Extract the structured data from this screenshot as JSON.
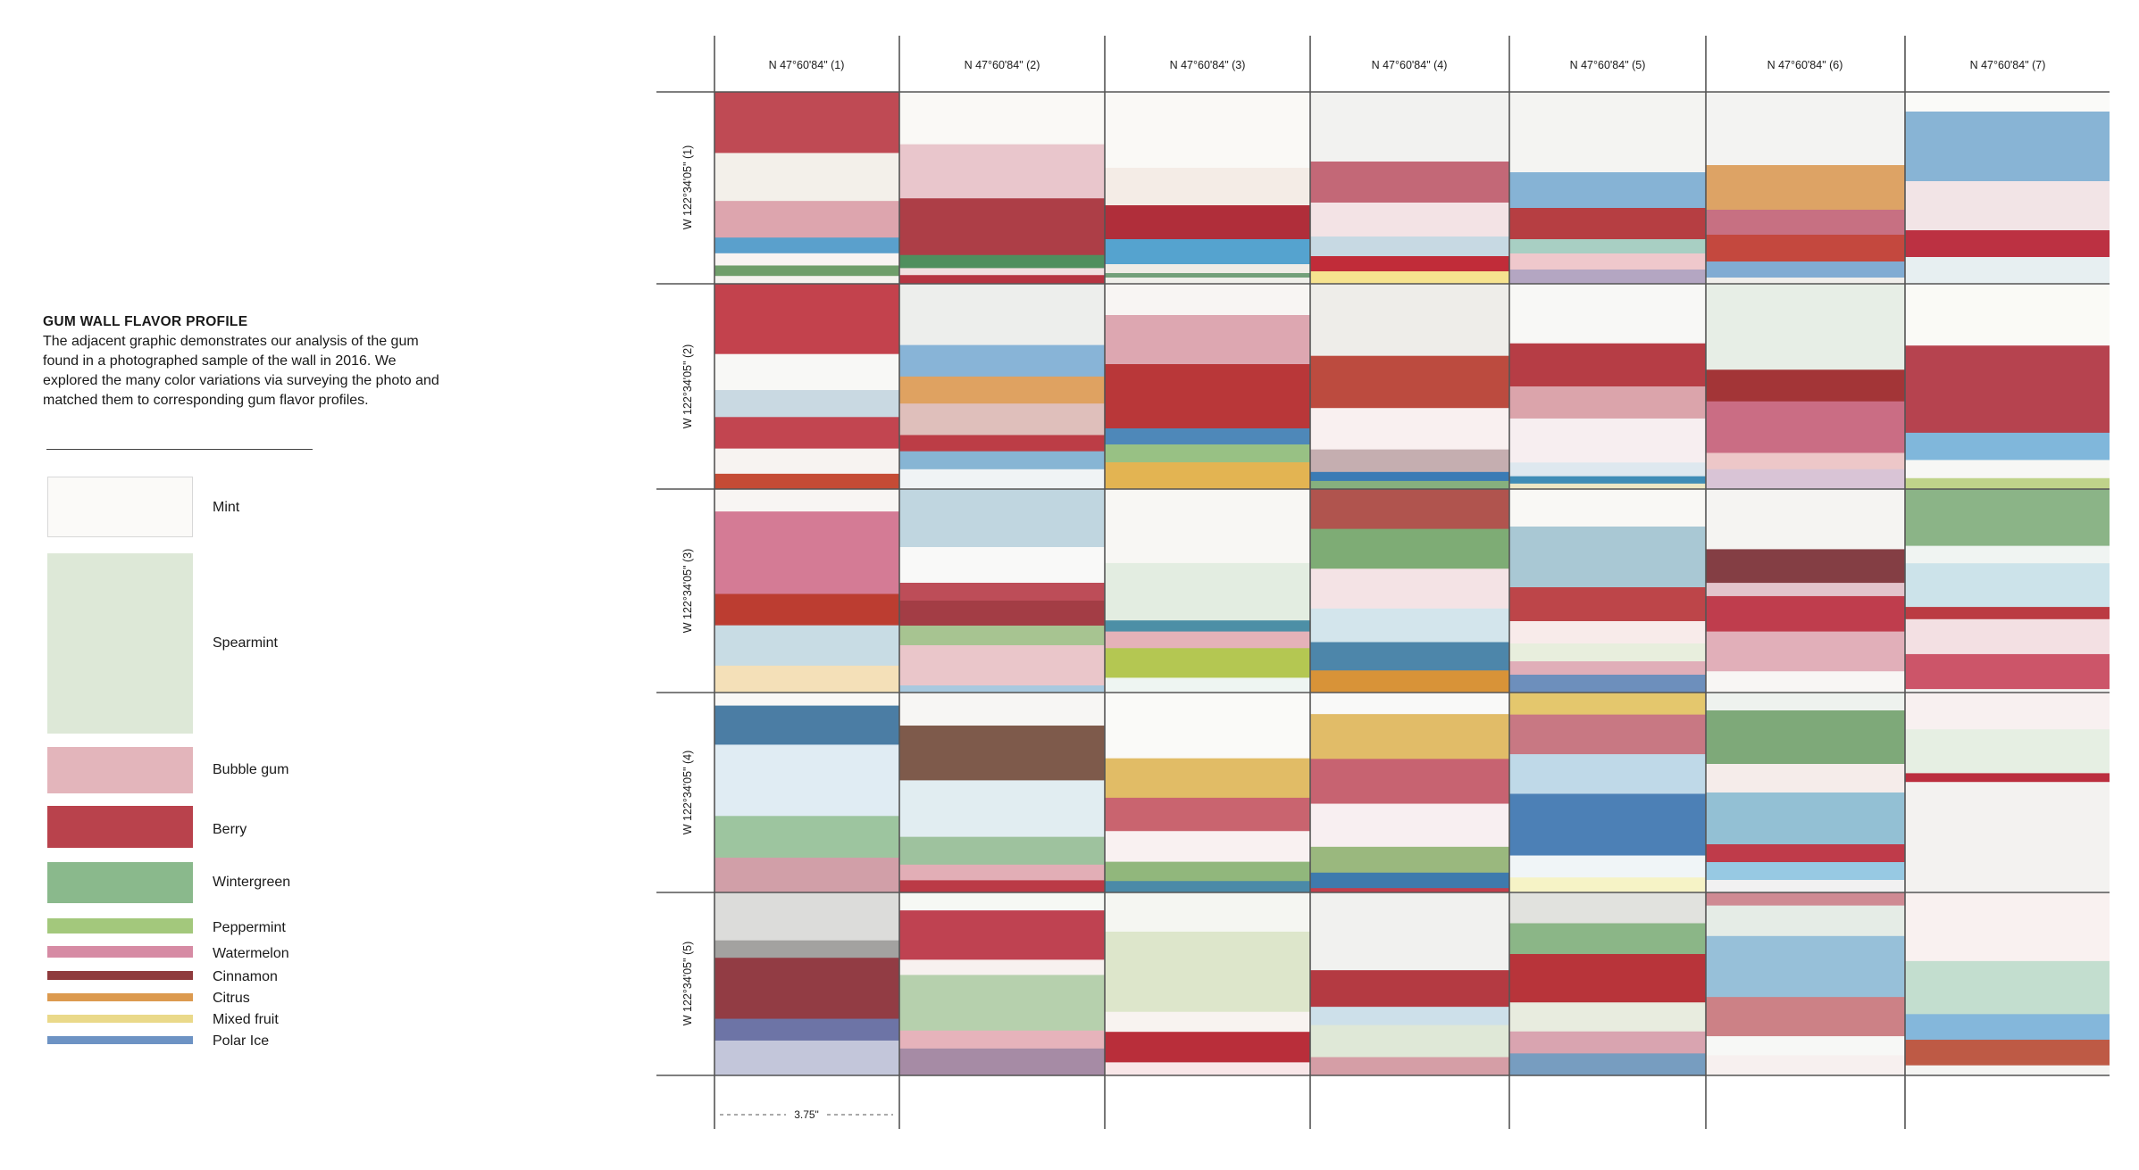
{
  "title": "GUM WALL FLAVOR PROFILE",
  "description": "The adjacent graphic demonstrates our analysis of the gum found in a photographed sample of the wall in 2016. We explored the many color variations via surveying the photo and matched them to corresponding gum flavor profiles.",
  "legend": [
    {
      "name": "Mint",
      "color": "#fbfaf8"
    },
    {
      "name": "Spearmint",
      "color": "#dde8d7"
    },
    {
      "name": "Bubble gum",
      "color": "#e3b5bb"
    },
    {
      "name": "Berry",
      "color": "#b9424c"
    },
    {
      "name": "Wintergreen",
      "color": "#8ab98c"
    },
    {
      "name": "Peppermint",
      "color": "#a3c87c"
    },
    {
      "name": "Watermelon",
      "color": "#d68ba4"
    },
    {
      "name": "Cinnamon",
      "color": "#8f3b3d"
    },
    {
      "name": "Citrus",
      "color": "#dc9a4f"
    },
    {
      "name": "Mixed fruit",
      "color": "#ead98a"
    },
    {
      "name": "Polar Ice",
      "color": "#6d93c4"
    }
  ],
  "columns": [
    "N 47°60'84\"  (1)",
    "N 47°60'84\"  (2)",
    "N 47°60'84\"  (3)",
    "N 47°60'84\"  (4)",
    "N 47°60'84\"  (5)",
    "N 47°60'84\"  (6)",
    "N 47°60'84\"  (7)"
  ],
  "rows": [
    "W 122°34'05\"  (1)",
    "W 122°34'05\"  (2)",
    "W 122°34'05\"  (3)",
    "W 122°34'05\"  (4)",
    "W 122°34'05\"  (5)"
  ],
  "scale_label": "3.75\"",
  "grid_colors": {
    "line": "#555555"
  },
  "cells": [
    [
      [
        [
          "#bf4a54",
          70
        ],
        [
          "#f3f0ea",
          55
        ],
        [
          "#dda5ae",
          42
        ],
        [
          "#5aa0cc",
          18
        ],
        [
          "#f8f4f2",
          14
        ],
        [
          "#6f9e6a",
          12
        ],
        [
          "#f4f2ee",
          9
        ]
      ],
      [
        [
          "#faf9f6",
          60
        ],
        [
          "#e9c6cc",
          62
        ],
        [
          "#ad3e47",
          65
        ],
        [
          "#4f8f5e",
          15
        ],
        [
          "#f1dfe0",
          8
        ],
        [
          "#b63442",
          10
        ]
      ],
      [
        [
          "#faf9f6",
          85
        ],
        [
          "#f4ece6",
          42
        ],
        [
          "#b02e3a",
          38
        ],
        [
          "#55a3cf",
          28
        ],
        [
          "#efece6",
          10
        ],
        [
          "#73a07a",
          5
        ],
        [
          "#f0efea",
          7
        ]
      ],
      [
        [
          "#f2f2f0",
          78
        ],
        [
          "#c36877",
          46
        ],
        [
          "#f3e3e5",
          38
        ],
        [
          "#c7d9e3",
          22
        ],
        [
          "#c12c39",
          17
        ],
        [
          "#f6e38f",
          14
        ]
      ],
      [
        [
          "#f4f4f2",
          90
        ],
        [
          "#86b3d5",
          40
        ],
        [
          "#b63e42",
          35
        ],
        [
          "#a8cfc3",
          16
        ],
        [
          "#efc8cc",
          18
        ],
        [
          "#b4a6c2",
          16
        ]
      ],
      [
        [
          "#f3f3f2",
          82
        ],
        [
          "#dda365",
          50
        ],
        [
          "#c77082",
          28
        ],
        [
          "#c4483e",
          30
        ],
        [
          "#81acd3",
          18
        ],
        [
          "#f0eeeb",
          7
        ]
      ],
      [
        [
          "#fafaf8",
          22
        ],
        [
          "#88b4d5",
          78
        ],
        [
          "#f2e4e6",
          55
        ],
        [
          "#bc3142",
          30
        ],
        [
          "#e7eff1",
          30
        ]
      ]
    ],
    [
      [
        [
          "#c3424d",
          78
        ],
        [
          "#f8f8f6",
          40
        ],
        [
          "#c9d9e2",
          30
        ],
        [
          "#c24550",
          35
        ],
        [
          "#f7f3f1",
          28
        ],
        [
          "#c54b35",
          17
        ]
      ],
      [
        [
          "#edeeec",
          68
        ],
        [
          "#88b4d7",
          35
        ],
        [
          "#dfa261",
          30
        ],
        [
          "#dfbfbb",
          35
        ],
        [
          "#bc3d46",
          18
        ],
        [
          "#87b5d4",
          20
        ],
        [
          "#f0f3f5",
          22
        ]
      ],
      [
        [
          "#f8f5f3",
          35
        ],
        [
          "#dda7b1",
          55
        ],
        [
          "#b93739",
          72
        ],
        [
          "#4e88b9",
          18
        ],
        [
          "#98c184",
          20
        ],
        [
          "#e3b452",
          30
        ]
      ],
      [
        [
          "#eeede9",
          80
        ],
        [
          "#bc4b3f",
          58
        ],
        [
          "#f9f0f0",
          46
        ],
        [
          "#c5aeb0",
          25
        ],
        [
          "#3a7bb5",
          10
        ],
        [
          "#86b07e",
          9
        ]
      ],
      [
        [
          "#f8f8f6",
          65
        ],
        [
          "#b63d45",
          47
        ],
        [
          "#dba4ab",
          35
        ],
        [
          "#f7eef0",
          48
        ],
        [
          "#dee8ef",
          15
        ],
        [
          "#3f8cb6",
          8
        ],
        [
          "#ece7c5",
          6
        ]
      ],
      [
        [
          "#e7eee6",
          95
        ],
        [
          "#a33537",
          35
        ],
        [
          "#ca6d84",
          57
        ],
        [
          "#edc7c8",
          18
        ],
        [
          "#d9c4d6",
          22
        ]
      ],
      [
        [
          "#fafaf6",
          68
        ],
        [
          "#b6434f",
          96
        ],
        [
          "#80b7db",
          30
        ],
        [
          "#f7f7f5",
          20
        ],
        [
          "#c0d38a",
          12
        ]
      ]
    ],
    [
      [
        [
          "#f8f5f3",
          25
        ],
        [
          "#d47b95",
          92
        ],
        [
          "#bc3d31",
          35
        ],
        [
          "#c8dce4",
          45
        ],
        [
          "#f4e0b8",
          30
        ]
      ],
      [
        [
          "#c0d6e0",
          65
        ],
        [
          "#f9f9f8",
          40
        ],
        [
          "#bd4d58",
          20
        ],
        [
          "#a33d45",
          28
        ],
        [
          "#a7c491",
          22
        ],
        [
          "#eac6ca",
          45
        ],
        [
          "#a9c9df",
          8
        ]
      ],
      [
        [
          "#f8f7f4",
          80
        ],
        [
          "#e3ede1",
          62
        ],
        [
          "#4d8fa6",
          12
        ],
        [
          "#e5b2b8",
          18
        ],
        [
          "#b4c752",
          32
        ],
        [
          "#eef5f2",
          16
        ]
      ],
      [
        [
          "#b0544e",
          45
        ],
        [
          "#7eac75",
          45
        ],
        [
          "#f4e3e5",
          45
        ],
        [
          "#d3e5ec",
          38
        ],
        [
          "#4d86aa",
          32
        ],
        [
          "#d89338",
          25
        ]
      ],
      [
        [
          "#f9f8f5",
          42
        ],
        [
          "#a9c8d4",
          68
        ],
        [
          "#bd4549",
          38
        ],
        [
          "#f8ebea",
          25
        ],
        [
          "#e8eedd",
          20
        ],
        [
          "#e0aeb8",
          15
        ],
        [
          "#6d8fbc",
          20
        ]
      ],
      [
        [
          "#f5f4f2",
          68
        ],
        [
          "#843e44",
          38
        ],
        [
          "#e3c4cc",
          15
        ],
        [
          "#bf3d4d",
          40
        ],
        [
          "#e1afb9",
          45
        ],
        [
          "#f8f6f4",
          24
        ]
      ],
      [
        [
          "#8bb487",
          65
        ],
        [
          "#f0f4f2",
          20
        ],
        [
          "#cce3ea",
          50
        ],
        [
          "#bb3b42",
          14
        ],
        [
          "#f3e0e3",
          40
        ],
        [
          "#cc5569",
          40
        ],
        [
          "#f4f4f2",
          4
        ]
      ]
    ],
    [
      [
        [
          "#f9f8f6",
          15
        ],
        [
          "#4b7da4",
          45
        ],
        [
          "#e0ecf3",
          82
        ],
        [
          "#9dc59f",
          48
        ],
        [
          "#d19fa8",
          40
        ]
      ],
      [
        [
          "#f7f6f4",
          38
        ],
        [
          "#7e5a4b",
          63
        ],
        [
          "#e1edf1",
          65
        ],
        [
          "#9ec29e",
          32
        ],
        [
          "#e2aeb6",
          18
        ],
        [
          "#bb3a46",
          14
        ]
      ],
      [
        [
          "#fafaf8",
          75
        ],
        [
          "#e1bc66",
          45
        ],
        [
          "#c9646f",
          38
        ],
        [
          "#f9f1f1",
          35
        ],
        [
          "#91b77c",
          22
        ],
        [
          "#4b8aa8",
          13
        ]
      ],
      [
        [
          "#f9f9f8",
          25
        ],
        [
          "#e1bc68",
          52
        ],
        [
          "#c76371",
          52
        ],
        [
          "#f8eff1",
          50
        ],
        [
          "#9ab87e",
          30
        ],
        [
          "#3e7aad",
          18
        ],
        [
          "#c23f4c",
          5
        ]
      ],
      [
        [
          "#e4c76d",
          25
        ],
        [
          "#c87883",
          45
        ],
        [
          "#bfd9e8",
          45
        ],
        [
          "#4c80b6",
          70
        ],
        [
          "#f0f5f7",
          25
        ],
        [
          "#f6f3c6",
          17
        ]
      ],
      [
        [
          "#eef2ee",
          20
        ],
        [
          "#7ea979",
          60
        ],
        [
          "#f5ecea",
          32
        ],
        [
          "#93c0d4",
          58
        ],
        [
          "#bf3b4a",
          20
        ],
        [
          "#97c9e3",
          20
        ],
        [
          "#f1f1f1",
          14
        ]
      ],
      [
        [
          "#f8f0f0",
          42
        ],
        [
          "#e6efe3",
          50
        ],
        [
          "#bb2e3e",
          10
        ],
        [
          "#f3f2f0",
          126
        ]
      ]
    ],
    [
      [
        [
          "#dcdcda",
          55
        ],
        [
          "#a3a2a0",
          20
        ],
        [
          "#923c44",
          70
        ],
        [
          "#6d74a6",
          25
        ],
        [
          "#c3c6da",
          40
        ]
      ],
      [
        [
          "#f6f8f4",
          20
        ],
        [
          "#bf4251",
          55
        ],
        [
          "#f7f1ef",
          17
        ],
        [
          "#b6d0ad",
          62
        ],
        [
          "#e6b3bb",
          20
        ],
        [
          "#a68ba5",
          30
        ]
      ],
      [
        [
          "#f5f6f2",
          45
        ],
        [
          "#dde6cb",
          92
        ],
        [
          "#f8f3f0",
          23
        ],
        [
          "#b92e3a",
          35
        ],
        [
          "#f8e6e8",
          15
        ]
      ],
      [
        [
          "#f1f1ef",
          85
        ],
        [
          "#b43a42",
          40
        ],
        [
          "#cde0ea",
          20
        ],
        [
          "#dfe8d7",
          35
        ],
        [
          "#d59ea6",
          20
        ]
      ],
      [
        [
          "#e1e2de",
          35
        ],
        [
          "#8bb687",
          35
        ],
        [
          "#b8343a",
          55
        ],
        [
          "#e8ecdf",
          33
        ],
        [
          "#d9a4b0",
          25
        ],
        [
          "#779dc0",
          25
        ]
      ],
      [
        [
          "#cf8a93",
          15
        ],
        [
          "#e5ece6",
          35
        ],
        [
          "#97c0d9",
          70
        ],
        [
          "#cc8186",
          45
        ],
        [
          "#f7f8f6",
          22
        ],
        [
          "#f7f0ef",
          23
        ]
      ],
      [
        [
          "#f9f1f0",
          75
        ],
        [
          "#c3decf",
          58
        ],
        [
          "#84b7db",
          28
        ],
        [
          "#be5a45",
          28
        ],
        [
          "#f4f4f2",
          11
        ]
      ]
    ]
  ]
}
